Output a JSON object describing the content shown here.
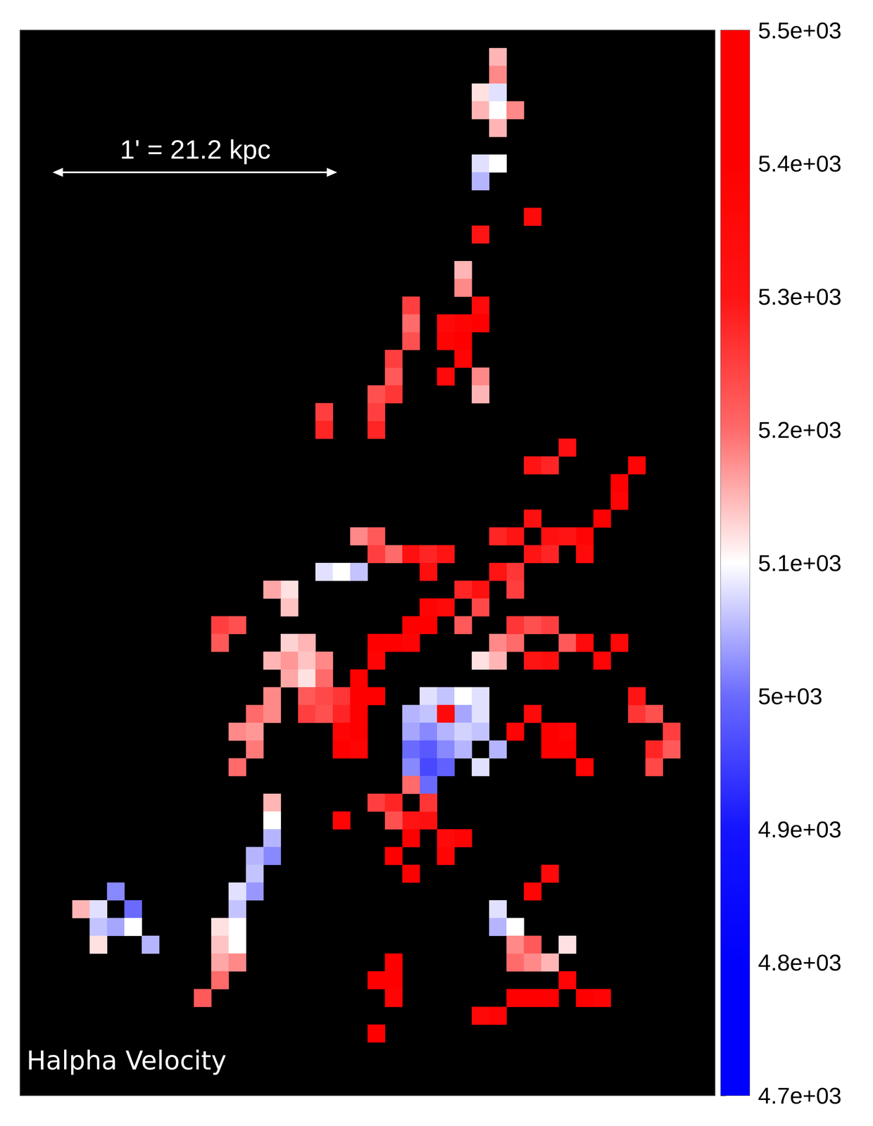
{
  "chart_data": {
    "type": "heatmap",
    "title": "Halpha Velocity",
    "annotations": [
      "1' = 21.2 kpc"
    ],
    "xlim": [
      0,
      40
    ],
    "ylim": [
      0,
      60
    ],
    "tick_labels": false,
    "colorbar": {
      "range": [
        4700,
        5500
      ],
      "ticks": [
        {
          "value": 4700,
          "label": "4.7e+03"
        },
        {
          "value": 4800,
          "label": "4.8e+03"
        },
        {
          "value": 4900,
          "label": "4.9e+03"
        },
        {
          "value": 5000,
          "label": "5e+03"
        },
        {
          "value": 5100,
          "label": "5.1e+03"
        },
        {
          "value": 5200,
          "label": "5.2e+03"
        },
        {
          "value": 5300,
          "label": "5.3e+03"
        },
        {
          "value": 5400,
          "label": "5.4e+03"
        },
        {
          "value": 5500,
          "label": "5.5e+03"
        }
      ]
    },
    "cells": [
      [
        27,
        58,
        5150
      ],
      [
        27,
        57,
        5180
      ],
      [
        26,
        56,
        5120
      ],
      [
        27,
        56,
        5080
      ],
      [
        26,
        55,
        5150
      ],
      [
        27,
        55,
        5100
      ],
      [
        28,
        55,
        5180
      ],
      [
        27,
        54,
        5150
      ],
      [
        26,
        52,
        5080
      ],
      [
        27,
        52,
        5100
      ],
      [
        26,
        51,
        5050
      ],
      [
        29,
        49,
        5350
      ],
      [
        26,
        48,
        5300
      ],
      [
        25,
        46,
        5150
      ],
      [
        25,
        45,
        5180
      ],
      [
        26,
        44,
        5350
      ],
      [
        25,
        43,
        5380
      ],
      [
        26,
        43,
        5400
      ],
      [
        25,
        42,
        5400
      ],
      [
        25,
        41,
        5380
      ],
      [
        24,
        40,
        5350
      ],
      [
        24,
        42,
        5380
      ],
      [
        24,
        43,
        5350
      ],
      [
        26,
        40,
        5180
      ],
      [
        26,
        39,
        5150
      ],
      [
        22,
        44,
        5250
      ],
      [
        22,
        42,
        5230
      ],
      [
        22,
        43,
        5200
      ],
      [
        21,
        40,
        5220
      ],
      [
        21,
        41,
        5250
      ],
      [
        21,
        39,
        5260
      ],
      [
        20,
        39,
        5230
      ],
      [
        20,
        37,
        5280
      ],
      [
        20,
        38,
        5250
      ],
      [
        17,
        38,
        5250
      ],
      [
        17,
        37,
        5280
      ],
      [
        29,
        35,
        5300
      ],
      [
        30,
        35,
        5280
      ],
      [
        31,
        36,
        5320
      ],
      [
        35,
        35,
        5380
      ],
      [
        34,
        34,
        5400
      ],
      [
        34,
        33,
        5380
      ],
      [
        33,
        32,
        5400
      ],
      [
        32,
        31,
        5380
      ],
      [
        32,
        30,
        5350
      ],
      [
        31,
        31,
        5300
      ],
      [
        30,
        31,
        5320
      ],
      [
        30,
        30,
        5280
      ],
      [
        29,
        30,
        5300
      ],
      [
        28,
        29,
        5260
      ],
      [
        27,
        29,
        5300
      ],
      [
        28,
        28,
        5250
      ],
      [
        26,
        28,
        5320
      ],
      [
        25,
        28,
        5280
      ],
      [
        26,
        27,
        5240
      ],
      [
        24,
        27,
        5350
      ],
      [
        23,
        27,
        5380
      ],
      [
        25,
        26,
        5220
      ],
      [
        23,
        26,
        5400
      ],
      [
        22,
        26,
        5400
      ],
      [
        21,
        25,
        5400
      ],
      [
        20,
        25,
        5420
      ],
      [
        22,
        25,
        5380
      ],
      [
        19,
        31,
        5180
      ],
      [
        20,
        31,
        5220
      ],
      [
        21,
        30,
        5200
      ],
      [
        20,
        30,
        5250
      ],
      [
        22,
        30,
        5320
      ],
      [
        23,
        30,
        5280
      ],
      [
        23,
        29,
        5330
      ],
      [
        24,
        30,
        5300
      ],
      [
        27,
        31,
        5280
      ],
      [
        28,
        31,
        5300
      ],
      [
        29,
        32,
        5320
      ],
      [
        27,
        25,
        5180
      ],
      [
        28,
        25,
        5200
      ],
      [
        29,
        26,
        5230
      ],
      [
        30,
        26,
        5250
      ],
      [
        31,
        25,
        5220
      ],
      [
        28,
        26,
        5260
      ],
      [
        26,
        24,
        5120
      ],
      [
        27,
        24,
        5150
      ],
      [
        32,
        25,
        5350
      ],
      [
        33,
        24,
        5380
      ],
      [
        34,
        25,
        5360
      ],
      [
        29,
        24,
        5300
      ],
      [
        30,
        24,
        5330
      ],
      [
        17,
        29,
        5080
      ],
      [
        18,
        29,
        5100
      ],
      [
        19,
        29,
        5060
      ],
      [
        15,
        28,
        5120
      ],
      [
        15,
        27,
        5140
      ],
      [
        14,
        28,
        5160
      ],
      [
        11,
        26,
        5250
      ],
      [
        12,
        26,
        5230
      ],
      [
        11,
        25,
        5220
      ],
      [
        15,
        25,
        5130
      ],
      [
        16,
        25,
        5150
      ],
      [
        14,
        24,
        5150
      ],
      [
        15,
        24,
        5170
      ],
      [
        16,
        24,
        5140
      ],
      [
        17,
        24,
        5180
      ],
      [
        15,
        23,
        5160
      ],
      [
        16,
        23,
        5120
      ],
      [
        17,
        23,
        5200
      ],
      [
        14,
        22,
        5180
      ],
      [
        16,
        22,
        5220
      ],
      [
        17,
        22,
        5240
      ],
      [
        18,
        22,
        5260
      ],
      [
        13,
        21,
        5200
      ],
      [
        14,
        21,
        5180
      ],
      [
        12,
        20,
        5180
      ],
      [
        13,
        20,
        5170
      ],
      [
        13,
        19,
        5190
      ],
      [
        12,
        18,
        5200
      ],
      [
        16,
        21,
        5250
      ],
      [
        17,
        21,
        5230
      ],
      [
        18,
        21,
        5280
      ],
      [
        19,
        23,
        5400
      ],
      [
        19,
        22,
        5420
      ],
      [
        18,
        20,
        5380
      ],
      [
        19,
        21,
        5400
      ],
      [
        19,
        20,
        5400
      ],
      [
        19,
        19,
        5380
      ],
      [
        18,
        19,
        5420
      ],
      [
        20,
        22,
        5400
      ],
      [
        20,
        24,
        5380
      ],
      [
        23,
        22,
        5080
      ],
      [
        24,
        22,
        5060
      ],
      [
        25,
        22,
        5100
      ],
      [
        26,
        22,
        5080
      ],
      [
        22,
        21,
        5050
      ],
      [
        23,
        21,
        5060
      ],
      [
        25,
        21,
        5040
      ],
      [
        26,
        21,
        5080
      ],
      [
        24,
        21,
        5350
      ],
      [
        22,
        20,
        5040
      ],
      [
        23,
        20,
        5020
      ],
      [
        24,
        20,
        5050
      ],
      [
        25,
        20,
        5070
      ],
      [
        26,
        20,
        5060
      ],
      [
        22,
        19,
        5000
      ],
      [
        23,
        19,
        4980
      ],
      [
        24,
        19,
        5020
      ],
      [
        25,
        19,
        5050
      ],
      [
        23,
        18,
        4960
      ],
      [
        24,
        18,
        4990
      ],
      [
        22,
        18,
        5020
      ],
      [
        23,
        17,
        5000
      ],
      [
        28,
        20,
        5380
      ],
      [
        29,
        21,
        5350
      ],
      [
        30,
        20,
        5400
      ],
      [
        31,
        20,
        5380
      ],
      [
        31,
        19,
        5400
      ],
      [
        30,
        19,
        5420
      ],
      [
        32,
        18,
        5380
      ],
      [
        35,
        21,
        5260
      ],
      [
        36,
        21,
        5230
      ],
      [
        37,
        20,
        5250
      ],
      [
        36,
        19,
        5280
      ],
      [
        37,
        19,
        5220
      ],
      [
        36,
        18,
        5240
      ],
      [
        35,
        22,
        5300
      ],
      [
        27,
        19,
        5050
      ],
      [
        26,
        18,
        5080
      ],
      [
        20,
        16,
        5250
      ],
      [
        21,
        16,
        5280
      ],
      [
        22,
        15,
        5300
      ],
      [
        21,
        15,
        5230
      ],
      [
        23,
        15,
        5320
      ],
      [
        24,
        14,
        5350
      ],
      [
        25,
        14,
        5380
      ],
      [
        22,
        17,
        5200
      ],
      [
        23,
        16,
        5260
      ],
      [
        22,
        14,
        5400
      ],
      [
        21,
        13,
        5400
      ],
      [
        22,
        12,
        5420
      ],
      [
        18,
        15,
        5380
      ],
      [
        24,
        13,
        5380
      ],
      [
        14,
        16,
        5150
      ],
      [
        14,
        15,
        5100
      ],
      [
        14,
        14,
        5050
      ],
      [
        14,
        13,
        5020
      ],
      [
        13,
        13,
        5050
      ],
      [
        13,
        12,
        5060
      ],
      [
        13,
        11,
        5030
      ],
      [
        12,
        11,
        5080
      ],
      [
        12,
        10,
        5060
      ],
      [
        12,
        9,
        5100
      ],
      [
        11,
        9,
        5120
      ],
      [
        11,
        8,
        5140
      ],
      [
        12,
        8,
        5100
      ],
      [
        11,
        7,
        5160
      ],
      [
        12,
        7,
        5180
      ],
      [
        11,
        6,
        5200
      ],
      [
        10,
        5,
        5220
      ],
      [
        3,
        10,
        5150
      ],
      [
        4,
        10,
        5080
      ],
      [
        5,
        11,
        5020
      ],
      [
        6,
        10,
        5000
      ],
      [
        4,
        9,
        5060
      ],
      [
        5,
        9,
        5040
      ],
      [
        6,
        9,
        5100
      ],
      [
        7,
        8,
        5050
      ],
      [
        4,
        8,
        5120
      ],
      [
        21,
        7,
        5400
      ],
      [
        20,
        6,
        5420
      ],
      [
        21,
        6,
        5400
      ],
      [
        21,
        5,
        5380
      ],
      [
        20,
        3,
        5400
      ],
      [
        27,
        10,
        5080
      ],
      [
        27,
        9,
        5050
      ],
      [
        28,
        9,
        5100
      ],
      [
        29,
        11,
        5380
      ],
      [
        30,
        12,
        5350
      ],
      [
        28,
        7,
        5200
      ],
      [
        28,
        8,
        5180
      ],
      [
        29,
        8,
        5220
      ],
      [
        29,
        7,
        5180
      ],
      [
        30,
        7,
        5150
      ],
      [
        31,
        8,
        5120
      ],
      [
        27,
        4,
        5380
      ],
      [
        28,
        5,
        5400
      ],
      [
        29,
        5,
        5420
      ],
      [
        30,
        5,
        5400
      ],
      [
        31,
        6,
        5380
      ],
      [
        32,
        5,
        5400
      ],
      [
        33,
        5,
        5380
      ],
      [
        26,
        4,
        5360
      ]
    ]
  }
}
